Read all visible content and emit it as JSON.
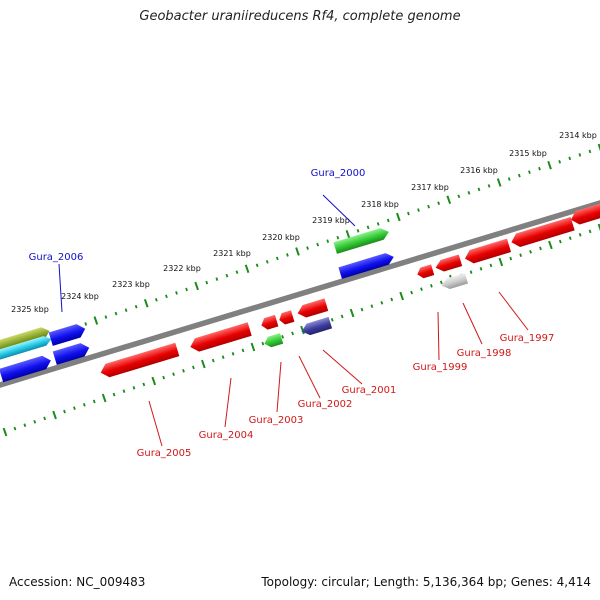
{
  "title": "Geobacter uraniireducens Rf4, complete genome",
  "footer": {
    "accession": "Accession: NC_009483",
    "summary": "Topology: circular; Length: 5,136,364 bp; Genes: 4,414"
  },
  "colors": {
    "backbone": "#808080",
    "ticks": "#1a8c1a",
    "forward_label": "#1010c8",
    "reverse_label": "#d01818"
  },
  "kbp_labels": [
    "2314 kbp",
    "2315 kbp",
    "2316 kbp",
    "2317 kbp",
    "2318 kbp",
    "2319 kbp",
    "2320 kbp",
    "2321 kbp",
    "2322 kbp",
    "2323 kbp",
    "2324 kbp",
    "2325 kbp"
  ],
  "gene_labels": [
    {
      "id": "g2000",
      "text": "Gura_2000",
      "strand": "forward"
    },
    {
      "id": "g2006",
      "text": "Gura_2006",
      "strand": "forward"
    },
    {
      "id": "g1997",
      "text": "Gura_1997",
      "strand": "reverse"
    },
    {
      "id": "g1998",
      "text": "Gura_1998",
      "strand": "reverse"
    },
    {
      "id": "g1999",
      "text": "Gura_1999",
      "strand": "reverse"
    },
    {
      "id": "g2001",
      "text": "Gura_2001",
      "strand": "reverse"
    },
    {
      "id": "g2002",
      "text": "Gura_2002",
      "strand": "reverse"
    },
    {
      "id": "g2003",
      "text": "Gura_2003",
      "strand": "reverse"
    },
    {
      "id": "g2004",
      "text": "Gura_2004",
      "strand": "reverse"
    },
    {
      "id": "g2005",
      "text": "Gura_2005",
      "strand": "reverse"
    }
  ]
}
